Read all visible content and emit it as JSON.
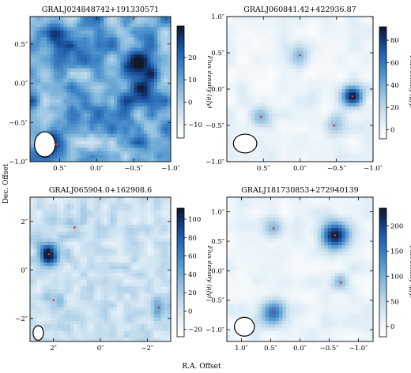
{
  "figure": {
    "xlabel": "R.A. Offset",
    "ylabel": "Dec. Offset",
    "cbar_label": "Flux density (μJy)"
  },
  "chart_data": [
    {
      "type": "heatmap",
      "title": "GRALJ024848742+191330571",
      "xlim": [
        0.9,
        -1.0
      ],
      "ylim": [
        -1.0,
        0.85
      ],
      "x_ticks": [
        0.5,
        0.0,
        -0.5,
        -1.0
      ],
      "x_tick_labels": [
        "0.5″",
        "0.0″",
        "−0.5″",
        "−1.0″"
      ],
      "y_ticks": [
        0.5,
        0.0,
        -0.5,
        -1.0
      ],
      "y_tick_labels": [
        "0.5″",
        "0.0″",
        "−0.5″",
        "−1.0″"
      ],
      "cbar_range": [
        -16,
        34
      ],
      "cbar_ticks": [
        20,
        10,
        0,
        -10
      ],
      "cbar_tick_labels": [
        "20",
        "10",
        "0",
        "−10"
      ],
      "background": "medium",
      "sources": [
        {
          "x": 0.55,
          "y": 0.55,
          "peak": 18,
          "sigma": 0.13
        },
        {
          "x": -0.55,
          "y": 0.25,
          "peak": 26,
          "sigma": 0.13
        },
        {
          "x": -0.6,
          "y": -0.1,
          "peak": 20,
          "sigma": 0.12
        },
        {
          "x": 0.58,
          "y": -0.78,
          "peak": 24,
          "sigma": 0.11
        }
      ],
      "markers": [
        {
          "x": -0.5,
          "y": -0.05
        },
        {
          "x": 0.55,
          "y": -0.78
        }
      ],
      "beam": {
        "x": 0.7,
        "y": -0.78,
        "rx": 0.14,
        "ry": 0.16
      }
    },
    {
      "type": "heatmap",
      "title": "GRALJ060841.42+422936.87",
      "xlim": [
        1.0,
        -1.0
      ],
      "ylim": [
        -1.0,
        1.0
      ],
      "x_ticks": [
        0.5,
        0.0,
        -0.5,
        -1.0
      ],
      "x_tick_labels": [
        "0.5″",
        "0.0″",
        "−0.5″",
        "−1.0″"
      ],
      "y_ticks": [
        1.0,
        0.5,
        0.0,
        -0.5,
        -1.0
      ],
      "y_tick_labels": [
        "1.0″",
        "0.5″",
        "0.0″",
        "−0.5″",
        "−1.0″"
      ],
      "cbar_range": [
        -8,
        92
      ],
      "cbar_ticks": [
        80,
        60,
        40,
        20,
        0
      ],
      "cbar_tick_labels": [
        "80",
        "60",
        "40",
        "20",
        "0"
      ],
      "background": "low",
      "sources": [
        {
          "x": 0.0,
          "y": 0.47,
          "peak": 28,
          "sigma": 0.1
        },
        {
          "x": -0.72,
          "y": -0.1,
          "peak": 88,
          "sigma": 0.1
        },
        {
          "x": 0.53,
          "y": -0.38,
          "peak": 30,
          "sigma": 0.1
        },
        {
          "x": -0.47,
          "y": -0.5,
          "peak": 32,
          "sigma": 0.1
        }
      ],
      "markers": [
        {
          "x": 0.0,
          "y": 0.47
        },
        {
          "x": -0.72,
          "y": -0.1
        },
        {
          "x": 0.53,
          "y": -0.38
        },
        {
          "x": -0.47,
          "y": -0.5
        }
      ],
      "beam": {
        "x": 0.75,
        "y": -0.75,
        "rx": 0.16,
        "ry": 0.13
      }
    },
    {
      "type": "heatmap",
      "title": "GRALJ065904.0+162908.6",
      "xlim": [
        3.0,
        -3.0
      ],
      "ylim": [
        -2.95,
        3.0
      ],
      "x_ticks": [
        2,
        0,
        -2
      ],
      "x_tick_labels": [
        "2″",
        "0″",
        "−2″"
      ],
      "y_ticks": [
        2,
        0,
        -2
      ],
      "y_tick_labels": [
        "2″",
        "0″",
        "−2″"
      ],
      "cbar_range": [
        -28,
        112
      ],
      "cbar_ticks": [
        100,
        80,
        60,
        40,
        20,
        0,
        -20
      ],
      "cbar_tick_labels": [
        "100",
        "80",
        "60",
        "40",
        "20",
        "0",
        "−20"
      ],
      "background": "noisy",
      "sources": [
        {
          "x": 1.1,
          "y": 1.75,
          "peak": 18,
          "sigma": 0.3
        },
        {
          "x": 2.2,
          "y": 0.65,
          "peak": 112,
          "sigma": 0.3
        },
        {
          "x": 2.0,
          "y": -1.25,
          "peak": 22,
          "sigma": 0.3
        },
        {
          "x": -2.5,
          "y": -1.55,
          "peak": 35,
          "sigma": 0.3
        }
      ],
      "markers": [
        {
          "x": 1.1,
          "y": 1.75
        },
        {
          "x": 2.2,
          "y": 0.65
        },
        {
          "x": 2.0,
          "y": -1.25
        },
        {
          "x": -2.5,
          "y": -1.55
        }
      ],
      "beam": {
        "x": 2.65,
        "y": -2.6,
        "rx": 0.22,
        "ry": 0.3
      }
    },
    {
      "type": "heatmap",
      "title": "GRALJ181730853+272940139",
      "xlim": [
        1.25,
        -1.25
      ],
      "ylim": [
        -1.2,
        1.25
      ],
      "x_ticks": [
        1.0,
        0.5,
        0.0,
        -0.5,
        -1.0
      ],
      "x_tick_labels": [
        "1.0″",
        "0.5″",
        "0.0″",
        "−0.5″",
        "−1.0″"
      ],
      "y_ticks": [
        1.0,
        0.5,
        0.0,
        -0.5,
        -1.0
      ],
      "y_tick_labels": [
        "1.0″",
        "0.5″",
        "0.0″",
        "−0.5″",
        "−1.0″"
      ],
      "cbar_range": [
        -20,
        235
      ],
      "cbar_ticks": [
        200,
        150,
        100,
        50,
        0
      ],
      "cbar_tick_labels": [
        "200",
        "150",
        "100",
        "50",
        "0"
      ],
      "background": "low",
      "sources": [
        {
          "x": 0.45,
          "y": 0.72,
          "peak": 80,
          "sigma": 0.13
        },
        {
          "x": -0.6,
          "y": 0.6,
          "peak": 235,
          "sigma": 0.17
        },
        {
          "x": -0.7,
          "y": -0.2,
          "peak": 70,
          "sigma": 0.11
        },
        {
          "x": 0.45,
          "y": -0.7,
          "peak": 150,
          "sigma": 0.15
        }
      ],
      "markers": [
        {
          "x": 0.45,
          "y": 0.72
        },
        {
          "x": -0.6,
          "y": 0.6
        },
        {
          "x": -0.7,
          "y": -0.2
        },
        {
          "x": 0.45,
          "y": -0.7
        }
      ],
      "beam": {
        "x": 0.95,
        "y": -0.95,
        "rx": 0.17,
        "ry": 0.16
      }
    }
  ]
}
